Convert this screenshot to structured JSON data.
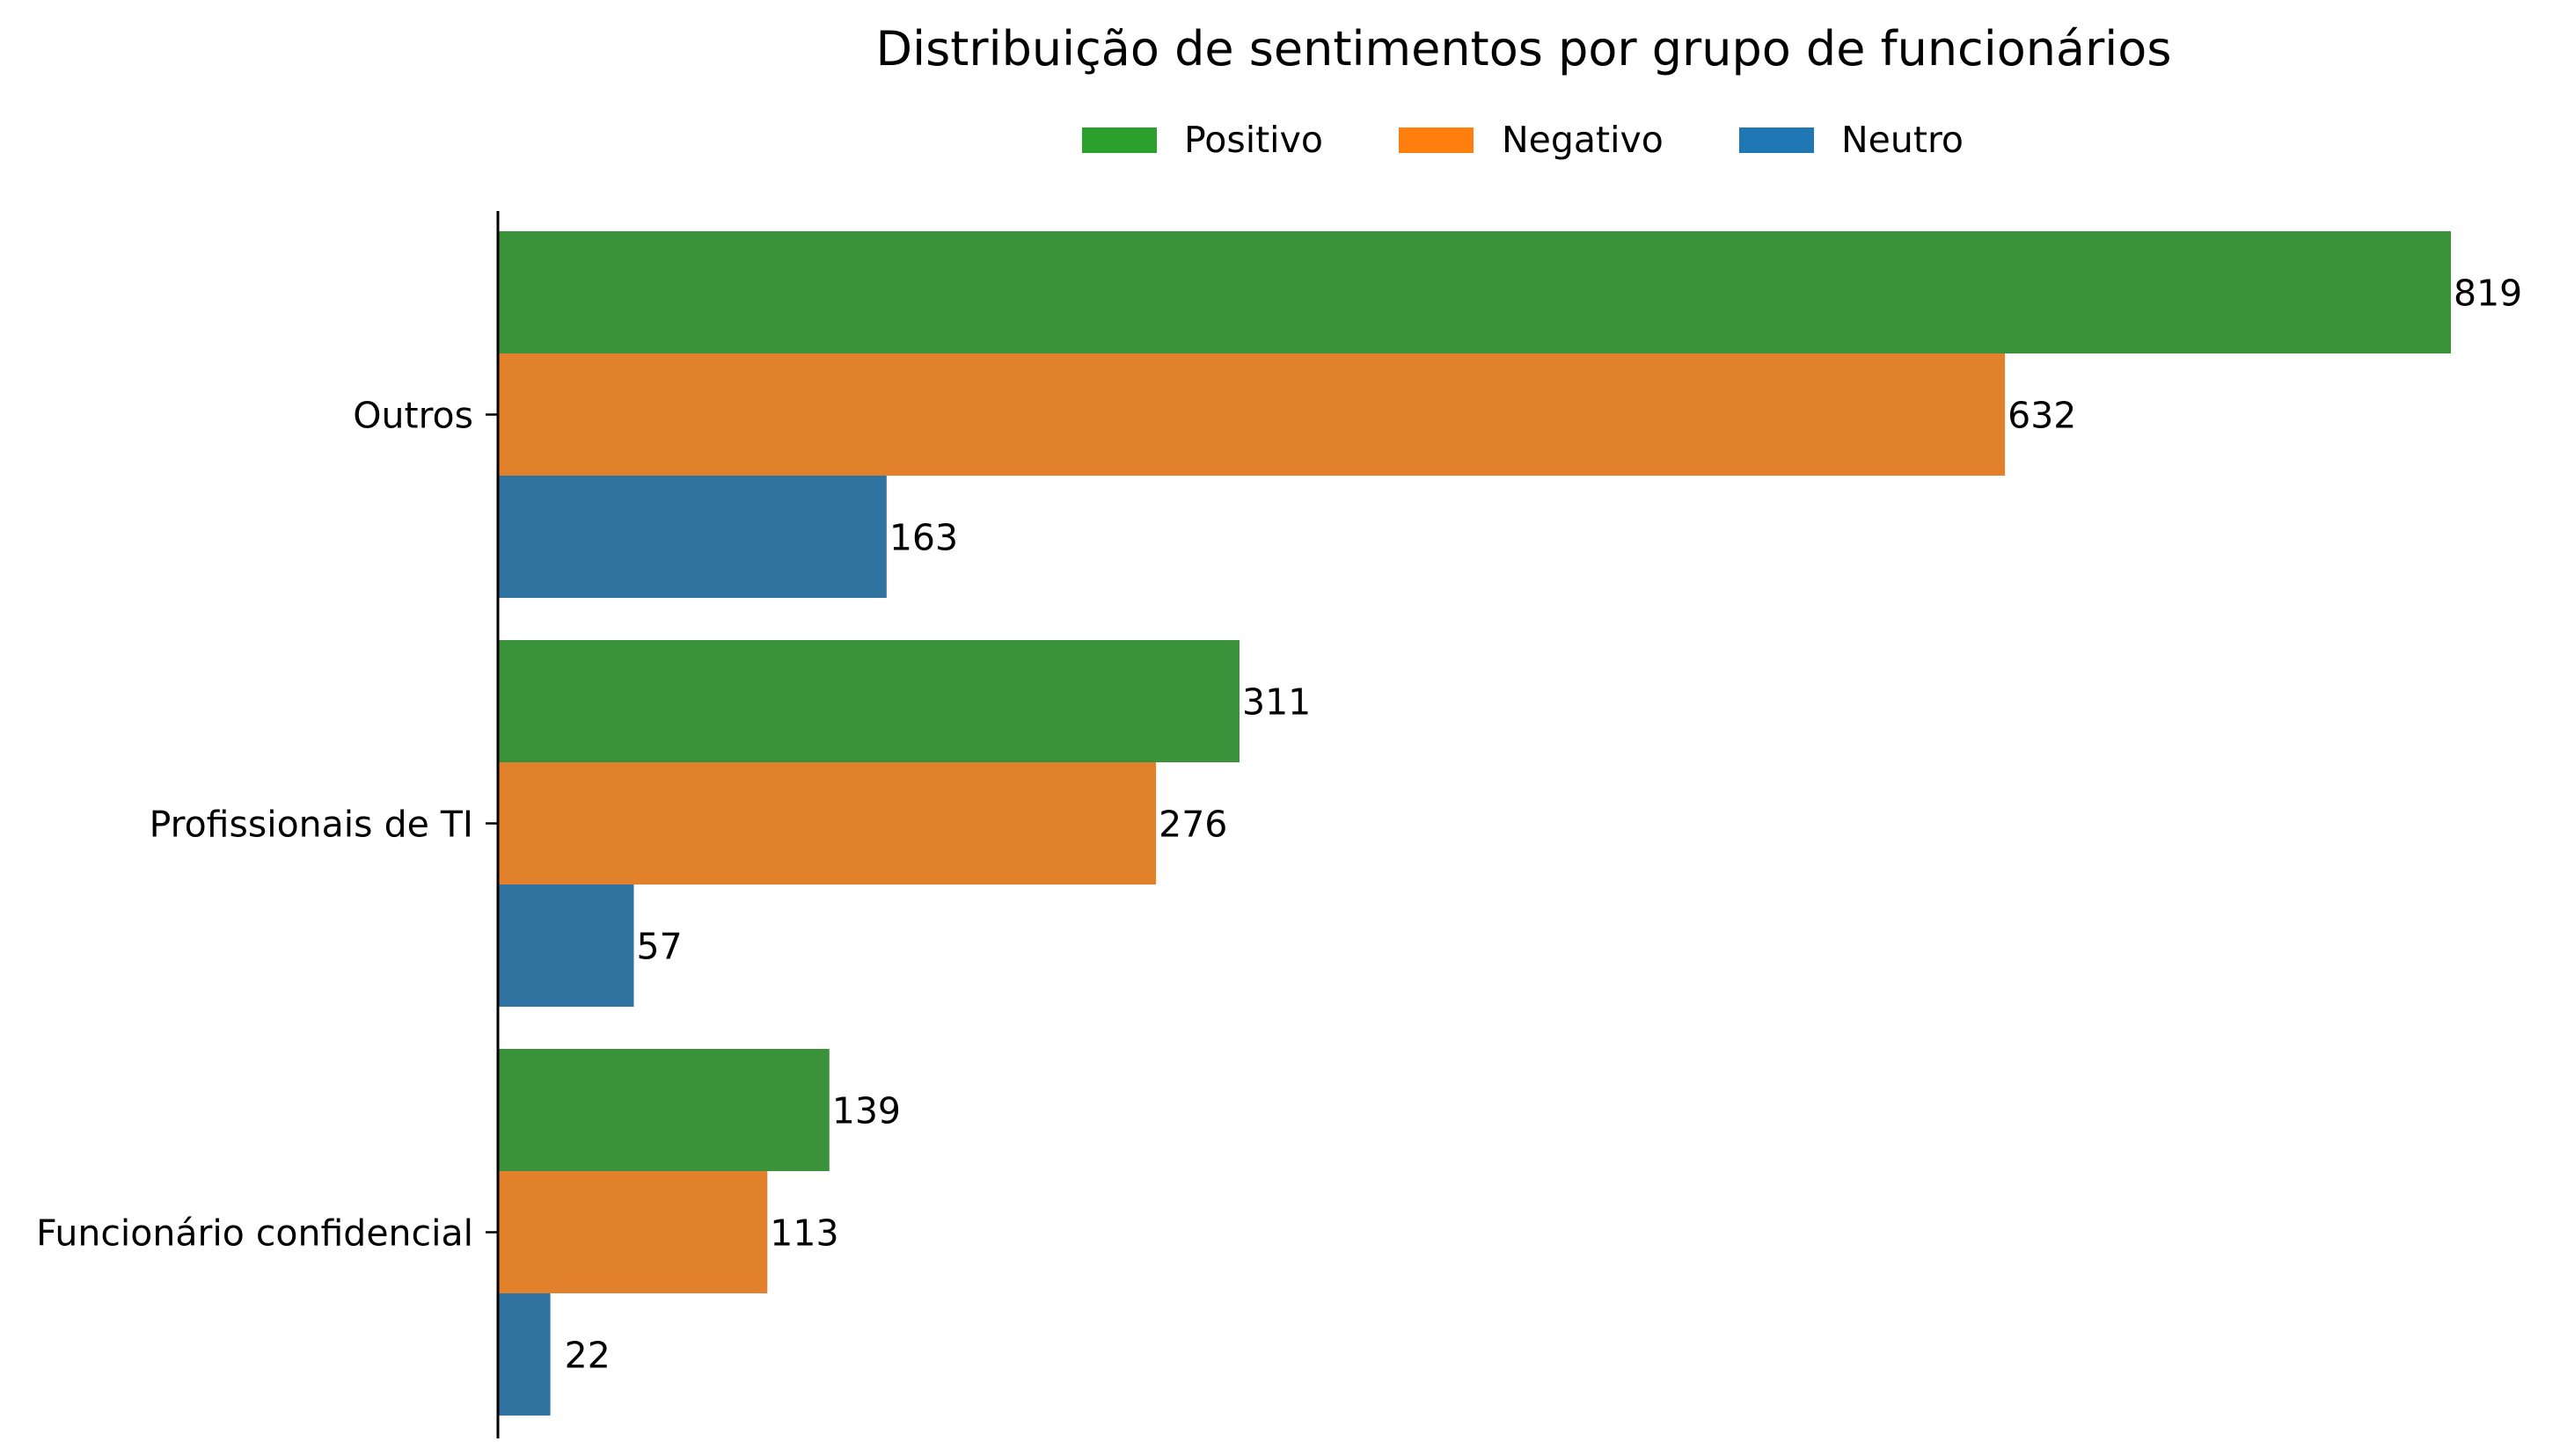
{
  "chart_data": {
    "type": "bar",
    "orientation": "horizontal",
    "title": "Distribuição de sentimentos por grupo de funcionários",
    "xlabel": "",
    "ylabel": "",
    "categories": [
      "Outros",
      "Profissionais de TI",
      "Funcionário confidencial"
    ],
    "series": [
      {
        "name": "Positivo",
        "color": "#3a933a",
        "legend_color": "#2ca02c",
        "values": [
          819,
          311,
          139
        ]
      },
      {
        "name": "Negativo",
        "color": "#e1812c",
        "legend_color": "#ff7f0e",
        "values": [
          632,
          276,
          113
        ]
      },
      {
        "name": "Neutro",
        "color": "#3274a1",
        "legend_color": "#1f77b4",
        "values": [
          163,
          57,
          22
        ]
      }
    ],
    "xlim": [
      0,
      850
    ],
    "grid": false,
    "legend": "top-center",
    "show_value_labels": true
  }
}
